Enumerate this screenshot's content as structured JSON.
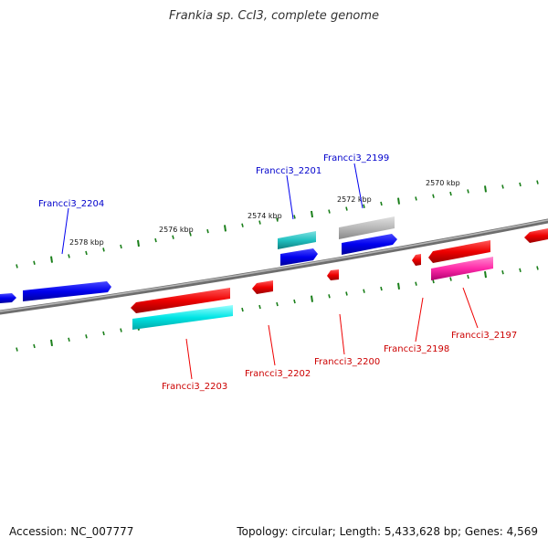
{
  "title": "Frankia sp. CcI3, complete genome",
  "footer": {
    "accession": "Accession: NC_007777",
    "summary": "Topology: circular; Length: 5,433,628 bp; Genes: 4,569"
  },
  "colors": {
    "forward_gene": "#0000ee",
    "reverse_gene": "#ee0000",
    "backbone": "#808080",
    "tick": "#1a7f1a",
    "cyan": "#00e5e5",
    "teal": "#20c0c0",
    "magenta": "#ff2aa8",
    "gray_gene": "#b0b0b0"
  },
  "scale_labels": [
    "2578 kbp",
    "2576 kbp",
    "2574 kbp",
    "2572 kbp",
    "2570 kbp"
  ],
  "gene_labels_top": [
    "Francci3_2204",
    "Francci3_2201",
    "Francci3_2199"
  ],
  "gene_labels_bottom": [
    "Francci3_2203",
    "Francci3_2202",
    "Francci3_2200",
    "Francci3_2198",
    "Francci3_2197"
  ]
}
